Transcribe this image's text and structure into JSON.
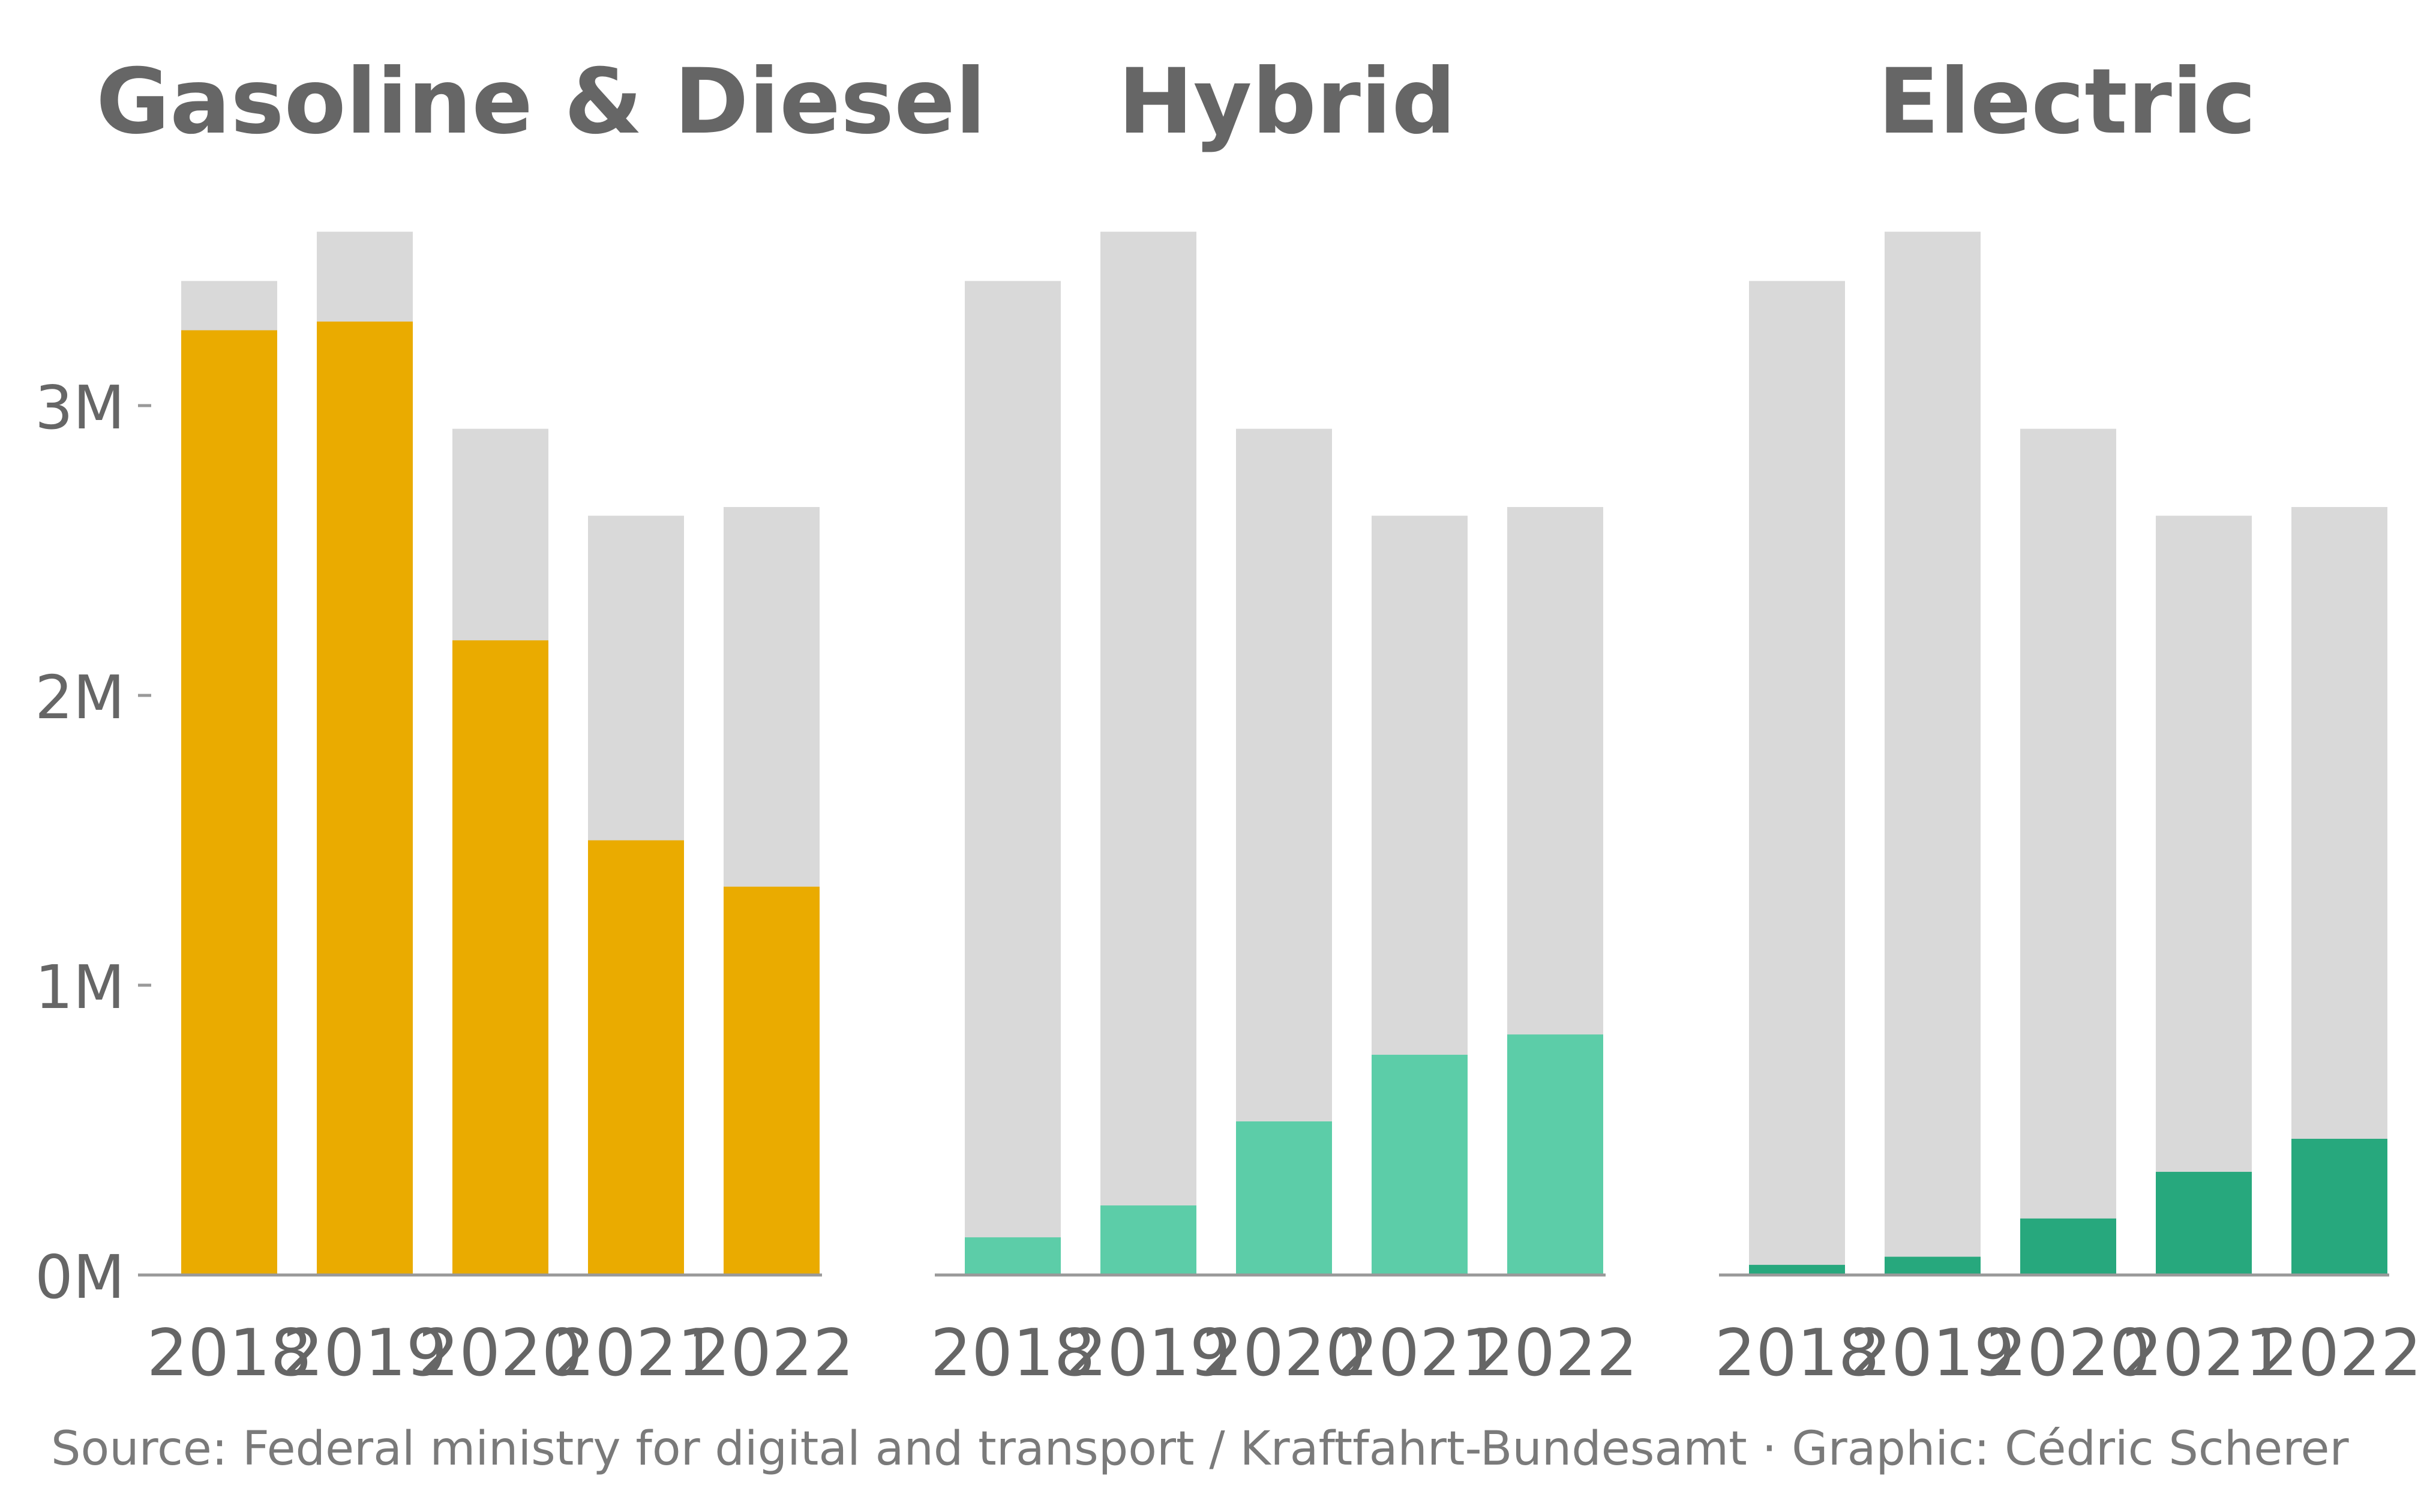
{
  "caption": "Source: Federal ministry for digital and transport / Kraftfahrt-Bundesamt · Graphic: Cédric Scherer",
  "colors": {
    "total": "#d9d9d9",
    "gasoline_diesel": "#eaab00",
    "hybrid": "#5ccda8",
    "electric": "#27a87d",
    "text": "#666666",
    "axis": "#999999"
  },
  "chart_data": [
    {
      "type": "bar",
      "title": "Gasoline & Diesel",
      "categories": [
        "2018",
        "2019",
        "2020",
        "2021",
        "2022"
      ],
      "series": [
        {
          "values": [
            3.43,
            3.6,
            2.92,
            2.62,
            2.65
          ]
        },
        {
          "values": [
            3.26,
            3.29,
            2.19,
            1.5,
            1.34
          ]
        }
      ],
      "yticks": [
        "0M",
        "1M",
        "2M",
        "3M"
      ],
      "ylim": [
        0,
        3.6
      ],
      "grid": false,
      "legend": "none"
    },
    {
      "type": "bar",
      "title": "Hybrid",
      "categories": [
        "2018",
        "2019",
        "2020",
        "2021",
        "2022"
      ],
      "series": [
        {
          "values": [
            3.43,
            3.6,
            2.92,
            2.62,
            2.65
          ]
        },
        {
          "values": [
            0.13,
            0.24,
            0.53,
            0.76,
            0.83
          ]
        }
      ],
      "ylim": [
        0,
        3.6
      ],
      "grid": false,
      "legend": "none"
    },
    {
      "type": "bar",
      "title": "Electric",
      "categories": [
        "2018",
        "2019",
        "2020",
        "2021",
        "2022"
      ],
      "series": [
        {
          "values": [
            3.43,
            3.6,
            2.92,
            2.62,
            2.65
          ]
        },
        {
          "values": [
            0.035,
            0.063,
            0.195,
            0.356,
            0.47
          ]
        }
      ],
      "ylim": [
        0,
        3.6
      ],
      "grid": false,
      "legend": "none"
    }
  ]
}
